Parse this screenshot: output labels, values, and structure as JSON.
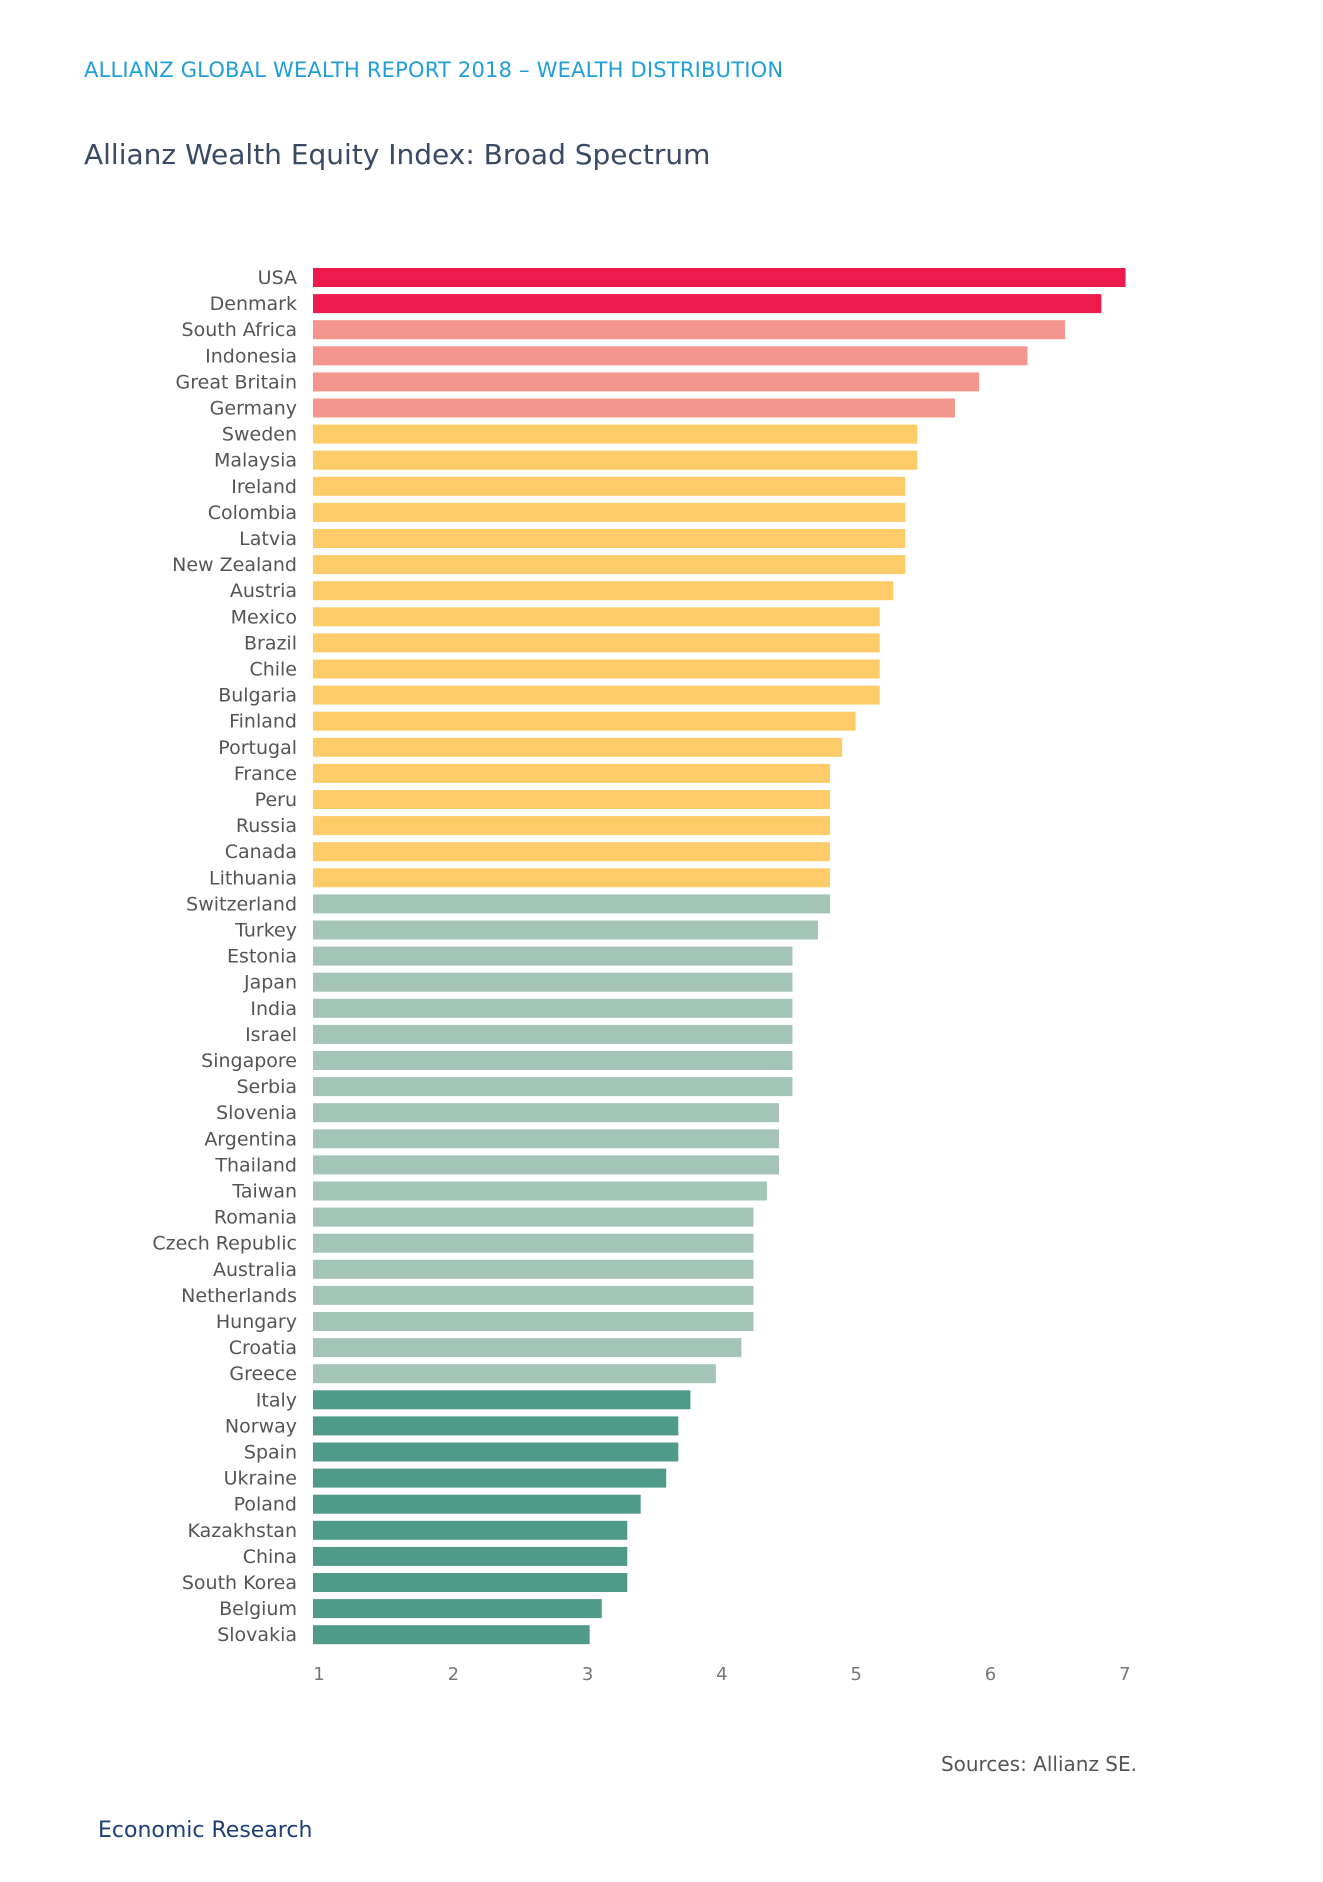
{
  "header": {
    "report_title": "ALLIANZ GLOBAL WEALTH REPORT 2018 – WEALTH DISTRIBUTION",
    "chart_title": "Allianz Wealth Equity Index: Broad Spectrum"
  },
  "footer": {
    "source": "Sources: Allianz SE.",
    "department": "Economic Research"
  },
  "colors": {
    "tier1": "#ee1a4b",
    "tier2": "#f5968e",
    "tier3": "#fecb69",
    "tier4": "#a5c4b8",
    "tier5": "#4f9a88",
    "axis_text": "#777777",
    "label_text": "#555555"
  },
  "chart_data": {
    "type": "bar",
    "orientation": "horizontal",
    "title": "Allianz Wealth Equity Index: Broad Spectrum",
    "xlabel": "",
    "ylabel": "",
    "xlim": [
      1,
      7.05
    ],
    "xticks": [
      1,
      2,
      3,
      4,
      5,
      6,
      7
    ],
    "grid": false,
    "categories": [
      "USA",
      "Denmark",
      "South Africa",
      "Indonesia",
      "Great Britain",
      "Germany",
      "Sweden",
      "Malaysia",
      "Ireland",
      "Colombia",
      "Latvia",
      "New Zealand",
      "Austria",
      "Mexico",
      "Brazil",
      "Chile",
      "Bulgaria",
      "Finland",
      "Portugal",
      "France",
      "Peru",
      "Russia",
      "Canada",
      "Lithuania",
      "Switzerland",
      "Turkey",
      "Estonia",
      "Japan",
      "India",
      "Israel",
      "Singapore",
      "Serbia",
      "Slovenia",
      "Argentina",
      "Thailand",
      "Taiwan",
      "Romania",
      "Czech Republic",
      "Australia",
      "Netherlands",
      "Hungary",
      "Croatia",
      "Greece",
      "Italy",
      "Norway",
      "Spain",
      "Ukraine",
      "Poland",
      "Kazakhstan",
      "China",
      "South Korea",
      "Belgium",
      "Slovakia"
    ],
    "values": [
      7.05,
      6.87,
      6.6,
      6.32,
      5.96,
      5.78,
      5.5,
      5.5,
      5.41,
      5.41,
      5.41,
      5.41,
      5.32,
      5.22,
      5.22,
      5.22,
      5.22,
      5.04,
      4.94,
      4.85,
      4.85,
      4.85,
      4.85,
      4.85,
      4.85,
      4.76,
      4.57,
      4.57,
      4.57,
      4.57,
      4.57,
      4.57,
      4.47,
      4.47,
      4.47,
      4.38,
      4.28,
      4.28,
      4.28,
      4.28,
      4.28,
      4.19,
      4.0,
      3.81,
      3.72,
      3.72,
      3.63,
      3.44,
      3.34,
      3.34,
      3.34,
      3.15,
      3.06
    ],
    "tiers": [
      1,
      1,
      2,
      2,
      2,
      2,
      3,
      3,
      3,
      3,
      3,
      3,
      3,
      3,
      3,
      3,
      3,
      3,
      3,
      3,
      3,
      3,
      3,
      3,
      4,
      4,
      4,
      4,
      4,
      4,
      4,
      4,
      4,
      4,
      4,
      4,
      4,
      4,
      4,
      4,
      4,
      4,
      4,
      5,
      5,
      5,
      5,
      5,
      5,
      5,
      5,
      5,
      5
    ]
  }
}
